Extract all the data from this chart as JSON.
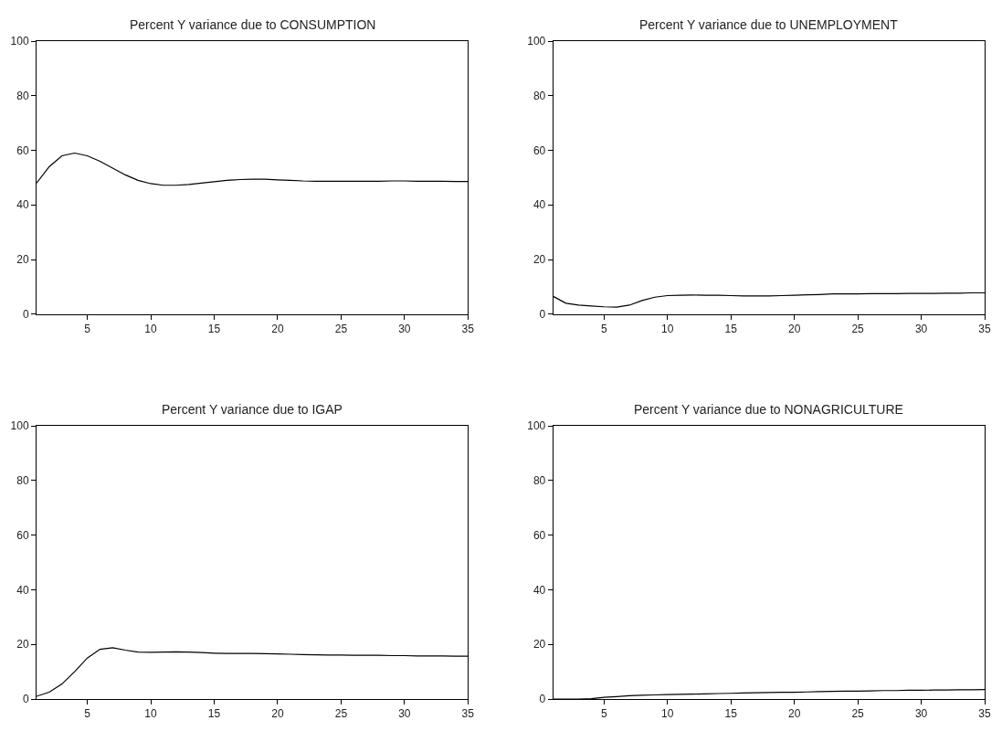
{
  "chart_data": [
    {
      "type": "line",
      "title": "Percent Y variance due to CONSUMPTION",
      "x": [
        1,
        2,
        3,
        4,
        5,
        6,
        7,
        8,
        9,
        10,
        11,
        12,
        13,
        14,
        15,
        16,
        17,
        18,
        19,
        20,
        21,
        22,
        23,
        24,
        25,
        26,
        27,
        28,
        29,
        30,
        31,
        32,
        33,
        34,
        35
      ],
      "series": [
        {
          "color": "#000000",
          "values": [
            48,
            54,
            58,
            59,
            58,
            56,
            53.5,
            51,
            49,
            47.8,
            47.2,
            47.2,
            47.5,
            48,
            48.5,
            49,
            49.3,
            49.4,
            49.4,
            49.2,
            49,
            48.8,
            48.7,
            48.7,
            48.7,
            48.7,
            48.7,
            48.7,
            48.8,
            48.8,
            48.7,
            48.7,
            48.7,
            48.6,
            48.6
          ]
        }
      ],
      "xlim": [
        1,
        35
      ],
      "ylim": [
        0,
        100
      ],
      "xticks": [
        5,
        10,
        15,
        20,
        25,
        30,
        35
      ],
      "yticks": [
        0,
        20,
        40,
        60,
        80,
        100
      ]
    },
    {
      "type": "line",
      "title": "Percent Y variance due to UNEMPLOYMENT",
      "x": [
        1,
        2,
        3,
        4,
        5,
        6,
        7,
        8,
        9,
        10,
        11,
        12,
        13,
        14,
        15,
        16,
        17,
        18,
        19,
        20,
        21,
        22,
        23,
        24,
        25,
        26,
        27,
        28,
        29,
        30,
        31,
        32,
        33,
        34,
        35
      ],
      "series": [
        {
          "color": "#000000",
          "values": [
            6.5,
            4,
            3.3,
            3,
            2.7,
            2.6,
            3.3,
            5,
            6.2,
            6.8,
            6.9,
            7,
            6.9,
            6.9,
            6.8,
            6.7,
            6.7,
            6.7,
            6.8,
            6.9,
            7.1,
            7.2,
            7.4,
            7.4,
            7.4,
            7.5,
            7.5,
            7.5,
            7.6,
            7.6,
            7.6,
            7.7,
            7.7,
            7.8,
            7.8
          ]
        }
      ],
      "xlim": [
        1,
        35
      ],
      "ylim": [
        0,
        100
      ],
      "xticks": [
        5,
        10,
        15,
        20,
        25,
        30,
        35
      ],
      "yticks": [
        0,
        20,
        40,
        60,
        80,
        100
      ]
    },
    {
      "type": "line",
      "title": "Percent Y variance due to IGAP",
      "x": [
        1,
        2,
        3,
        4,
        5,
        6,
        7,
        8,
        9,
        10,
        11,
        12,
        13,
        14,
        15,
        16,
        17,
        18,
        19,
        20,
        21,
        22,
        23,
        24,
        25,
        26,
        27,
        28,
        29,
        30,
        31,
        32,
        33,
        34,
        35
      ],
      "series": [
        {
          "color": "#000000",
          "values": [
            1,
            2.5,
            5.5,
            10,
            15,
            18.2,
            18.8,
            17.9,
            17.2,
            17.1,
            17.2,
            17.3,
            17.2,
            17,
            16.8,
            16.7,
            16.7,
            16.7,
            16.6,
            16.5,
            16.4,
            16.3,
            16.2,
            16.1,
            16.1,
            16,
            16,
            16,
            15.9,
            15.9,
            15.8,
            15.8,
            15.8,
            15.7,
            15.7
          ]
        }
      ],
      "xlim": [
        1,
        35
      ],
      "ylim": [
        0,
        100
      ],
      "xticks": [
        5,
        10,
        15,
        20,
        25,
        30,
        35
      ],
      "yticks": [
        0,
        20,
        40,
        60,
        80,
        100
      ]
    },
    {
      "type": "line",
      "title": "Percent Y variance due to NONAGRICULTURE",
      "x": [
        1,
        2,
        3,
        4,
        5,
        6,
        7,
        8,
        9,
        10,
        11,
        12,
        13,
        14,
        15,
        16,
        17,
        18,
        19,
        20,
        21,
        22,
        23,
        24,
        25,
        26,
        27,
        28,
        29,
        30,
        31,
        32,
        33,
        34,
        35
      ],
      "series": [
        {
          "color": "#000000",
          "values": [
            0,
            0,
            0,
            0.1,
            0.6,
            0.9,
            1.2,
            1.4,
            1.5,
            1.6,
            1.7,
            1.8,
            1.9,
            2,
            2.1,
            2.2,
            2.3,
            2.4,
            2.5,
            2.5,
            2.6,
            2.7,
            2.8,
            2.9,
            2.9,
            3,
            3.1,
            3.1,
            3.2,
            3.2,
            3.3,
            3.3,
            3.4,
            3.4,
            3.5
          ]
        }
      ],
      "xlim": [
        1,
        35
      ],
      "ylim": [
        0,
        100
      ],
      "xticks": [
        5,
        10,
        15,
        20,
        25,
        30,
        35
      ],
      "yticks": [
        0,
        20,
        40,
        60,
        80,
        100
      ]
    }
  ]
}
